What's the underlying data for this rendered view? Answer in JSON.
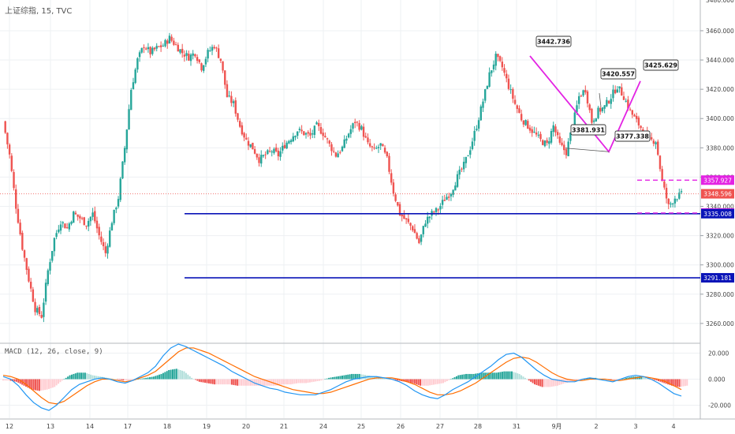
{
  "chart_title": "上证综指, 15, TVC",
  "macd_label": "MACD (12, 26, close, 9)",
  "chart_data": [
    {
      "type": "candlestick",
      "title": "上证综指, 15, TVC",
      "x_ticks": [
        "12",
        "13",
        "14",
        "17",
        "18",
        "19",
        "20",
        "21",
        "24",
        "25",
        "26",
        "27",
        "28",
        "31",
        "9月",
        "2",
        "3",
        "4"
      ],
      "y_ticks": [
        "3460.000",
        "3440.000",
        "3420.000",
        "3400.000",
        "3380.000",
        "3360.000",
        "3340.000",
        "3320.000",
        "3300.000",
        "3280.000",
        "3260.000"
      ],
      "y_top_partial": "3480.000",
      "ylim": [
        3247,
        3481
      ],
      "close_path": [
        3398,
        3375,
        3340,
        3312,
        3290,
        3270,
        3265,
        3296,
        3318,
        3330,
        3325,
        3335,
        3332,
        3328,
        3335,
        3320,
        3308,
        3330,
        3346,
        3380,
        3420,
        3440,
        3450,
        3445,
        3448,
        3450,
        3455,
        3450,
        3445,
        3442,
        3445,
        3435,
        3445,
        3450,
        3440,
        3415,
        3410,
        3395,
        3385,
        3380,
        3372,
        3375,
        3378,
        3375,
        3382,
        3387,
        3392,
        3390,
        3388,
        3395,
        3390,
        3382,
        3375,
        3380,
        3390,
        3398,
        3393,
        3382,
        3378,
        3382,
        3372,
        3350,
        3335,
        3330,
        3325,
        3315,
        3330,
        3335,
        3338,
        3345,
        3350,
        3360,
        3368,
        3380,
        3395,
        3412,
        3430,
        3442,
        3435,
        3422,
        3410,
        3400,
        3395,
        3390,
        3385,
        3382,
        3395,
        3382,
        3377,
        3395,
        3415,
        3420,
        3398,
        3405,
        3408,
        3415,
        3422,
        3415,
        3405,
        3398,
        3392,
        3385,
        3385,
        3357,
        3340,
        3346,
        3348
      ],
      "last_price": 3348.596,
      "annotations": [
        {
          "label": "3442.736",
          "value": 3442.736
        },
        {
          "label": "3381.931",
          "value": 3381.931
        },
        {
          "label": "3377.338",
          "value": 3377.338
        },
        {
          "label": "3420.557",
          "value": 3420.557
        },
        {
          "label": "3425.629",
          "value": 3425.629
        }
      ],
      "horizontal_lines": [
        {
          "value": 3335.008,
          "color": "#0a14b8",
          "style": "solid"
        },
        {
          "value": 3291.181,
          "color": "#0a14b8",
          "style": "solid"
        },
        {
          "value": 3357.927,
          "color": "#e323e3",
          "style": "dashed"
        },
        {
          "value": 3335.453,
          "color": "#e323e3",
          "style": "dashed"
        }
      ],
      "price_tags": [
        {
          "label": "3357.927",
          "value": 3357.927,
          "color": "#e323e3"
        },
        {
          "label": "3348.596",
          "value": 3348.596,
          "color": "#ef5350"
        },
        {
          "label": "3335.453",
          "value": 3335.453,
          "color": "#e323e3"
        },
        {
          "label": "3335.008",
          "value": 3335.008,
          "color": "#0a14b8"
        },
        {
          "label": "3291.181",
          "value": 3291.181,
          "color": "#0a14b8"
        }
      ],
      "colors": {
        "up": "#26a69a",
        "down": "#ef5350",
        "pattern": "#e323e3",
        "grid": "#eef0f3"
      }
    },
    {
      "type": "macd",
      "title": "MACD (12, 26, close, 9)",
      "y_ticks": [
        "20.000",
        "0.000",
        "-20.000"
      ],
      "ylim": [
        -30,
        27
      ],
      "macd": [
        2,
        0,
        -5,
        -12,
        -18,
        -22,
        -24,
        -20,
        -14,
        -8,
        -4,
        -2,
        0,
        1,
        0,
        -2,
        -3,
        -1,
        2,
        5,
        10,
        18,
        24,
        27,
        25,
        22,
        19,
        16,
        13,
        10,
        6,
        3,
        0,
        -3,
        -5,
        -7,
        -8,
        -10,
        -11,
        -12,
        -12,
        -12,
        -10,
        -8,
        -5,
        -2,
        0,
        1,
        2,
        2,
        1,
        0,
        -2,
        -5,
        -9,
        -12,
        -14,
        -15,
        -12,
        -8,
        -5,
        -2,
        2,
        6,
        10,
        15,
        19,
        20,
        17,
        12,
        7,
        3,
        0,
        -1,
        -2,
        -2,
        0,
        1,
        0,
        -1,
        -2,
        0,
        2,
        3,
        2,
        0,
        -3,
        -7,
        -11,
        -13
      ],
      "signal": [
        3,
        2,
        0,
        -4,
        -9,
        -14,
        -18,
        -19,
        -17,
        -13,
        -9,
        -5,
        -2,
        0,
        0,
        -1,
        -2,
        -1,
        1,
        3,
        6,
        11,
        16,
        21,
        24,
        24,
        22,
        20,
        17,
        14,
        11,
        8,
        5,
        2,
        0,
        -2,
        -4,
        -6,
        -8,
        -9,
        -10,
        -11,
        -11,
        -10,
        -8,
        -6,
        -4,
        -2,
        0,
        1,
        1,
        1,
        0,
        -2,
        -4,
        -7,
        -10,
        -12,
        -12,
        -11,
        -9,
        -6,
        -3,
        1,
        5,
        9,
        13,
        16,
        17,
        16,
        13,
        9,
        5,
        2,
        0,
        -1,
        -1,
        0,
        0,
        0,
        -1,
        -1,
        0,
        1,
        2,
        1,
        0,
        -2,
        -5,
        -8
      ]
    }
  ]
}
